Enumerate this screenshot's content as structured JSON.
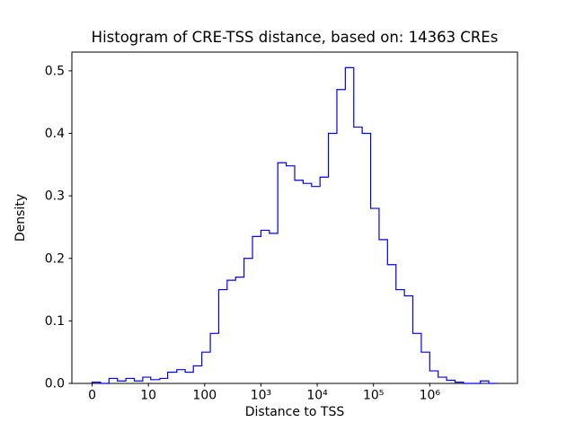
{
  "chart_data": {
    "type": "histogram",
    "subtype": "step",
    "title": "Histogram of CRE-TSS distance, based on: 14363 CREs",
    "xlabel": "Distance to TSS",
    "ylabel": "Density",
    "n_cres": 14363,
    "line_color": "#0000ff",
    "x_scale": "symlog",
    "linthresh": 10,
    "ylim": [
      0,
      0.53
    ],
    "grid": false,
    "legend": "none",
    "x_ticks": [
      {
        "value": 0,
        "label": "0"
      },
      {
        "value": 10,
        "label": "10"
      },
      {
        "value": 100,
        "label": "100"
      },
      {
        "value": 1000,
        "label": "10³"
      },
      {
        "value": 10000,
        "label": "10⁴"
      },
      {
        "value": 100000,
        "label": "10⁵"
      },
      {
        "value": 1000000,
        "label": "10⁶"
      }
    ],
    "y_ticks": [
      {
        "value": 0.0,
        "label": "0.0"
      },
      {
        "value": 0.1,
        "label": "0.1"
      },
      {
        "value": 0.2,
        "label": "0.2"
      },
      {
        "value": 0.3,
        "label": "0.3"
      },
      {
        "value": 0.4,
        "label": "0.4"
      },
      {
        "value": 0.5,
        "label": "0.5"
      }
    ],
    "bin_edges": [
      0,
      1.5,
      3,
      4.5,
      6,
      7.5,
      9,
      11,
      16,
      22,
      32,
      45,
      63,
      89,
      126,
      178,
      251,
      355,
      501,
      708,
      1000,
      1413,
      1995,
      2818,
      3981,
      5623,
      7943,
      11220,
      15849,
      22387,
      31623,
      44668,
      63096,
      89125,
      125893,
      177828,
      251189,
      354813,
      501187,
      707946,
      1000000,
      1412538,
      1995262,
      2818383,
      3981072,
      5623413,
      7943282,
      11220185,
      15848932
    ],
    "densities": [
      0.002,
      0.0,
      0.008,
      0.004,
      0.008,
      0.004,
      0.01,
      0.006,
      0.008,
      0.018,
      0.022,
      0.018,
      0.028,
      0.05,
      0.08,
      0.15,
      0.165,
      0.17,
      0.2,
      0.235,
      0.245,
      0.24,
      0.353,
      0.348,
      0.325,
      0.32,
      0.315,
      0.33,
      0.4,
      0.47,
      0.505,
      0.41,
      0.4,
      0.28,
      0.23,
      0.19,
      0.15,
      0.14,
      0.08,
      0.05,
      0.02,
      0.01,
      0.005,
      0.002,
      0.0,
      0.0,
      0.004,
      0.0
    ]
  }
}
